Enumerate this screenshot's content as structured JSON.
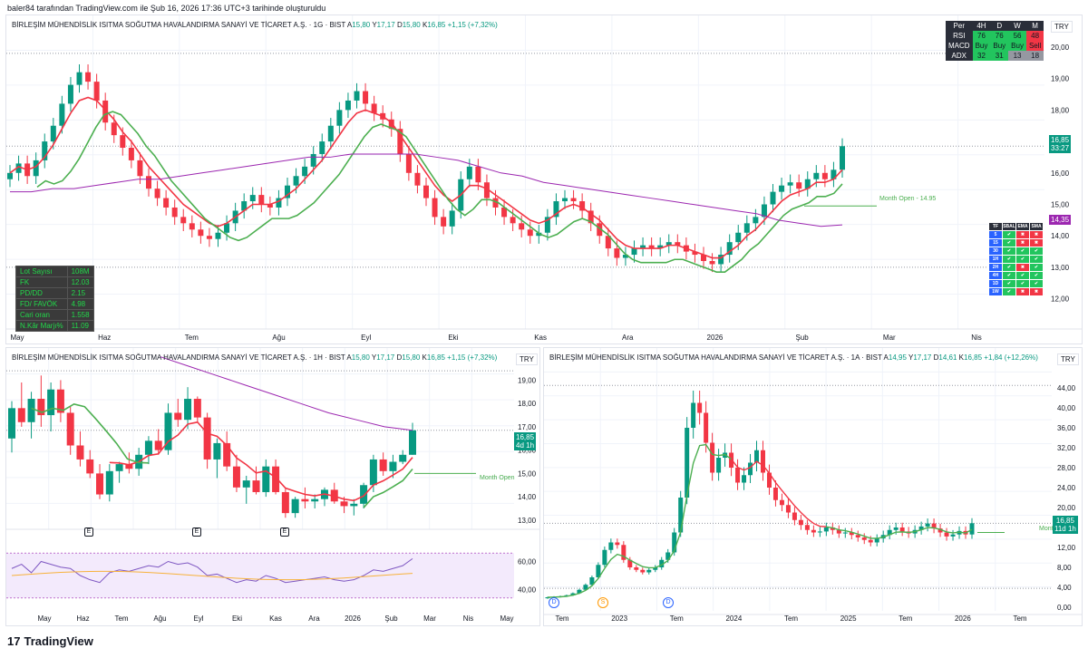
{
  "header": {
    "credit": "baler84 tarafından TradingView.com ile Şub 16, 2026 17:36 UTC+3 tarihinde oluşturuldu"
  },
  "footer": {
    "logo_text": "TradingView",
    "logo_mark": "17"
  },
  "colors": {
    "up": "#089981",
    "down": "#f23645",
    "ema_fast": "#f23645",
    "ema_slow": "#4caf50",
    "sma_long": "#9c27b0",
    "grid": "#f0f3fa"
  },
  "main_chart": {
    "ticker_name": "BİRLEŞİM MÜHENDİSLİK ISITMA SOĞUTMA HAVALANDIRMA SANAYİ VE TİCARET A.Ş. · 1G · BIST",
    "o_label": "A",
    "o_val": "15,80",
    "h_label": "Y",
    "h_val": "17,17",
    "l_label": "D",
    "l_val": "15,80",
    "c_label": "K",
    "c_val": "16,85",
    "chg": "+1,15 (+7,32%)",
    "currency": "TRY",
    "price_tag": "16,85",
    "price_tag_time": "33:27",
    "ma_tag": "14,35",
    "month_open_label": "Month Open - 14.95",
    "y_ticks": [
      "20,00",
      "19,00",
      "18,00",
      "17,00",
      "16,00",
      "15,00",
      "14,00",
      "13,00",
      "12,00"
    ],
    "x_ticks": [
      "May",
      "Haz",
      "Tem",
      "Ağu",
      "Eyl",
      "Eki",
      "Kas",
      "Ara",
      "2026",
      "Şub",
      "Mar",
      "Nis"
    ],
    "signal_table": {
      "header": [
        "Per",
        "4H",
        "D",
        "W",
        "M"
      ],
      "rows": [
        {
          "label": "RSI",
          "cells": [
            "76",
            "76",
            "56",
            "48"
          ]
        },
        {
          "label": "MACD",
          "cells": [
            "Buy",
            "Buy",
            "Buy",
            "Sell"
          ]
        },
        {
          "label": "ADX",
          "cells": [
            "32",
            "31",
            "13",
            "18"
          ]
        }
      ]
    },
    "fundamentals": [
      {
        "label": "Lot Sayısı",
        "value": "108M"
      },
      {
        "label": "FK",
        "value": "12.03"
      },
      {
        "label": "PD/DD",
        "value": "2.15"
      },
      {
        "label": "FD/ FAVÖK",
        "value": "4.98"
      },
      {
        "label": "Cari oran",
        "value": "1.558"
      },
      {
        "label": "N.Kâr Marjı%",
        "value": "11.09"
      }
    ],
    "trend_table": {
      "header": [
        "TF",
        "SBAL",
        "EMA",
        "SMA"
      ],
      "rows": [
        "5",
        "15",
        "30",
        "1H",
        "2H",
        "4H",
        "1D",
        "1W"
      ]
    }
  },
  "weekly_chart": {
    "ticker_name": "BİRLEŞİM MÜHENDİSLİK ISITMA SOĞUTMA HAVALANDIRMA SANAYİ VE TİCARET A.Ş. · 1H · BIST",
    "o_label": "A",
    "o_val": "15,80",
    "h_label": "Y",
    "h_val": "17,17",
    "l_label": "D",
    "l_val": "15,80",
    "c_label": "K",
    "c_val": "16,85",
    "chg": "+1,15 (+7,32%)",
    "currency": "TRY",
    "price_tag": "16,85",
    "price_tag_time": "4d 1h",
    "month_open_label": "Month Open",
    "y_ticks": [
      "19,00",
      "18,00",
      "17,00",
      "16,00",
      "15,00",
      "14,00",
      "13,00"
    ],
    "rsi_ticks": [
      "60,00",
      "40,00"
    ],
    "x_ticks": [
      "May",
      "Haz",
      "Tem",
      "Ağu",
      "Eyl",
      "Eki",
      "Kas",
      "Ara",
      "2026",
      "Şub",
      "Mar",
      "Nis",
      "May"
    ],
    "earnings_marker": "E"
  },
  "monthly_chart": {
    "ticker_name": "BİRLEŞİM MÜHENDİSLİK ISITMA SOĞUTMA HAVALANDIRMA SANAYİ VE TİCARET A.Ş. · 1A · BIST",
    "o_label": "A",
    "o_val": "14,95",
    "h_label": "Y",
    "h_val": "17,17",
    "l_label": "D",
    "l_val": "14,61",
    "c_label": "K",
    "c_val": "16,85",
    "chg": "+1,84 (+12,26%)",
    "currency": "TRY",
    "price_tag": "16,85",
    "price_tag_time": "11d 1h",
    "month_open_label": "Mont",
    "y_ticks": [
      "44,00",
      "40,00",
      "36,00",
      "32,00",
      "28,00",
      "24,00",
      "20,00",
      "16,00",
      "12,00",
      "8,00",
      "4,00",
      "0,00"
    ],
    "x_ticks": [
      "Tem",
      "2023",
      "Tem",
      "2024",
      "Tem",
      "2025",
      "Tem",
      "2026",
      "Tem"
    ],
    "dividend_marker": "D",
    "split_marker": "S"
  },
  "chart_data": [
    {
      "type": "candlestick",
      "title": "BİRLEŞİM MÜHENDİSLİK ISITMA SOĞUTMA HAVALANDIRMA SANAYİ VE TİCARET A.Ş. · 1G · BIST",
      "ylim": [
        11.5,
        20.2
      ],
      "ohlc_close_approx": [
        16.0,
        16.3,
        15.9,
        16.4,
        17.0,
        17.5,
        18.2,
        18.8,
        19.2,
        18.9,
        18.3,
        17.6,
        17.2,
        16.8,
        16.4,
        15.9,
        15.5,
        15.2,
        14.9,
        14.6,
        14.4,
        14.2,
        14.0,
        13.9,
        14.1,
        14.4,
        14.8,
        15.1,
        15.3,
        15.0,
        14.9,
        15.2,
        15.6,
        15.9,
        16.2,
        16.6,
        17.0,
        17.5,
        18.0,
        18.3,
        18.6,
        18.2,
        17.9,
        17.7,
        17.4,
        16.6,
        16.0,
        15.6,
        15.2,
        14.6,
        14.3,
        14.8,
        15.8,
        16.2,
        15.7,
        15.2,
        14.9,
        14.6,
        14.4,
        14.2,
        14.0,
        14.1,
        14.6,
        15.1,
        15.2,
        15.1,
        14.8,
        14.4,
        14.0,
        13.6,
        13.3,
        13.4,
        13.6,
        13.7,
        13.6,
        13.7,
        13.8,
        13.7,
        13.5,
        13.4,
        13.2,
        13.1,
        13.4,
        13.8,
        14.1,
        14.4,
        14.6,
        15.0,
        15.4,
        15.6,
        15.7,
        15.5,
        15.8,
        16.0,
        15.8,
        16.1,
        16.85
      ],
      "ema_fast_approx": [
        16.0,
        16.2,
        16.1,
        16.2,
        16.5,
        16.9,
        17.4,
        17.9,
        18.3,
        18.4,
        18.3,
        18.0,
        17.7,
        17.3,
        17.0,
        16.6,
        16.2,
        15.9,
        15.6,
        15.3,
        15.0,
        14.8,
        14.6,
        14.4,
        14.3,
        14.4,
        14.6,
        14.8,
        15.0,
        15.0,
        15.0,
        15.1,
        15.3,
        15.5,
        15.8,
        16.1,
        16.4,
        16.8,
        17.2,
        17.6,
        17.9,
        18.0,
        17.9,
        17.8,
        17.6,
        17.2,
        16.8,
        16.4,
        16.0,
        15.6,
        15.3,
        15.1,
        15.3,
        15.6,
        15.6,
        15.5,
        15.3,
        15.1,
        14.9,
        14.7,
        14.5,
        14.4,
        14.5,
        14.7,
        14.9,
        15.0,
        14.9,
        14.7,
        14.5,
        14.2,
        13.9,
        13.7,
        13.6,
        13.6,
        13.6,
        13.6,
        13.7,
        13.7,
        13.6,
        13.5,
        13.4,
        13.3,
        13.3,
        13.5,
        13.7,
        14.0,
        14.2,
        14.5,
        14.8,
        15.1,
        15.3,
        15.4,
        15.5,
        15.7,
        15.7,
        15.8,
        16.1
      ],
      "sma_long_approx": [
        15.4,
        15.4,
        15.5,
        15.5,
        15.6,
        15.7,
        15.8,
        15.8,
        15.9,
        16.0,
        16.1,
        16.2,
        16.3,
        16.4,
        16.5,
        16.5,
        16.6,
        16.6,
        16.6,
        16.6,
        16.5,
        16.4,
        16.2,
        16.0,
        15.9,
        15.7,
        15.6,
        15.5,
        15.4,
        15.3,
        15.2,
        15.1,
        15.0,
        14.9,
        14.8,
        14.7,
        14.5,
        14.4,
        14.3,
        14.35
      ]
    },
    {
      "type": "candlestick",
      "title": "BİRLEŞİM MÜHENDİSLİK ISITMA SOĞUTMA HAVALANDIRMA SANAYİ VE TİCARET A.Ş. · 1H · BIST",
      "ylim": [
        12.8,
        19.6
      ],
      "ohlc_approx": [
        [
          16.5,
          18.1,
          15.9,
          17.8
        ],
        [
          17.8,
          18.9,
          17.0,
          17.2
        ],
        [
          17.2,
          18.5,
          16.5,
          18.2
        ],
        [
          18.2,
          19.2,
          17.0,
          17.5
        ],
        [
          17.5,
          18.9,
          16.8,
          18.6
        ],
        [
          18.6,
          19.0,
          17.2,
          17.6
        ],
        [
          17.6,
          17.9,
          15.8,
          16.2
        ],
        [
          16.2,
          16.8,
          15.3,
          15.6
        ],
        [
          15.6,
          16.0,
          14.8,
          15.0
        ],
        [
          15.0,
          15.4,
          13.9,
          14.1
        ],
        [
          14.1,
          15.4,
          13.8,
          15.1
        ],
        [
          15.1,
          15.5,
          14.6,
          15.4
        ],
        [
          15.4,
          15.9,
          15.0,
          15.2
        ],
        [
          15.2,
          16.1,
          14.9,
          15.8
        ],
        [
          15.8,
          16.6,
          15.4,
          16.4
        ],
        [
          16.4,
          16.9,
          15.8,
          16.0
        ],
        [
          16.0,
          18.0,
          15.8,
          17.6
        ],
        [
          17.6,
          18.2,
          17.0,
          17.3
        ],
        [
          17.3,
          18.7,
          16.9,
          18.2
        ],
        [
          18.2,
          18.3,
          17.2,
          17.4
        ],
        [
          17.4,
          17.6,
          15.2,
          15.6
        ],
        [
          15.6,
          16.5,
          14.8,
          16.3
        ],
        [
          16.3,
          16.8,
          15.1,
          15.3
        ],
        [
          15.3,
          15.8,
          14.2,
          14.4
        ],
        [
          14.4,
          14.9,
          13.7,
          14.7
        ],
        [
          14.7,
          15.3,
          14.1,
          14.2
        ],
        [
          14.2,
          15.6,
          14.0,
          15.3
        ],
        [
          15.3,
          15.6,
          14.1,
          14.2
        ],
        [
          14.2,
          14.4,
          13.1,
          13.3
        ],
        [
          13.3,
          14.0,
          13.1,
          13.9
        ],
        [
          13.9,
          14.4,
          13.5,
          13.8
        ],
        [
          13.8,
          14.1,
          13.5,
          13.9
        ],
        [
          13.9,
          14.4,
          13.6,
          14.3
        ],
        [
          14.3,
          14.6,
          13.7,
          13.8
        ],
        [
          13.8,
          14.0,
          13.3,
          13.6
        ],
        [
          13.6,
          13.9,
          13.2,
          13.7
        ],
        [
          13.7,
          14.6,
          13.5,
          14.5
        ],
        [
          14.5,
          15.8,
          14.2,
          15.6
        ],
        [
          15.6,
          15.9,
          14.9,
          15.1
        ],
        [
          15.1,
          15.8,
          14.8,
          15.5
        ],
        [
          15.5,
          16.0,
          15.4,
          15.8
        ],
        [
          15.8,
          17.17,
          15.8,
          16.85
        ]
      ],
      "rsi_ylim": [
        30,
        70
      ]
    },
    {
      "type": "candlestick",
      "title": "BİRLEŞİM MÜHENDİSLİK ISITMA SOĞUTMA HAVALANDIRMA SANAYİ VE TİCARET A.Ş. · 1A · BIST",
      "ylim": [
        0,
        46
      ],
      "close_approx": [
        2.0,
        2.1,
        2.2,
        2.4,
        2.8,
        3.5,
        4.5,
        6.0,
        8.5,
        11.5,
        13.0,
        12.5,
        9.5,
        8.0,
        7.5,
        7.0,
        7.5,
        8.0,
        9.5,
        11.0,
        15.0,
        22.0,
        36.0,
        41.0,
        39.0,
        33.0,
        27.0,
        30.0,
        31.0,
        28.0,
        25.0,
        26.5,
        29.0,
        31.5,
        27.0,
        24.0,
        21.5,
        20.5,
        19.0,
        17.5,
        16.5,
        15.5,
        15.0,
        15.2,
        16.0,
        15.5,
        14.8,
        15.0,
        14.5,
        14.0,
        13.5,
        13.0,
        13.8,
        14.5,
        15.5,
        16.0,
        15.2,
        14.8,
        15.5,
        16.2,
        16.8,
        15.8,
        15.0,
        14.2,
        14.6,
        15.3,
        14.6,
        16.85
      ]
    }
  ]
}
